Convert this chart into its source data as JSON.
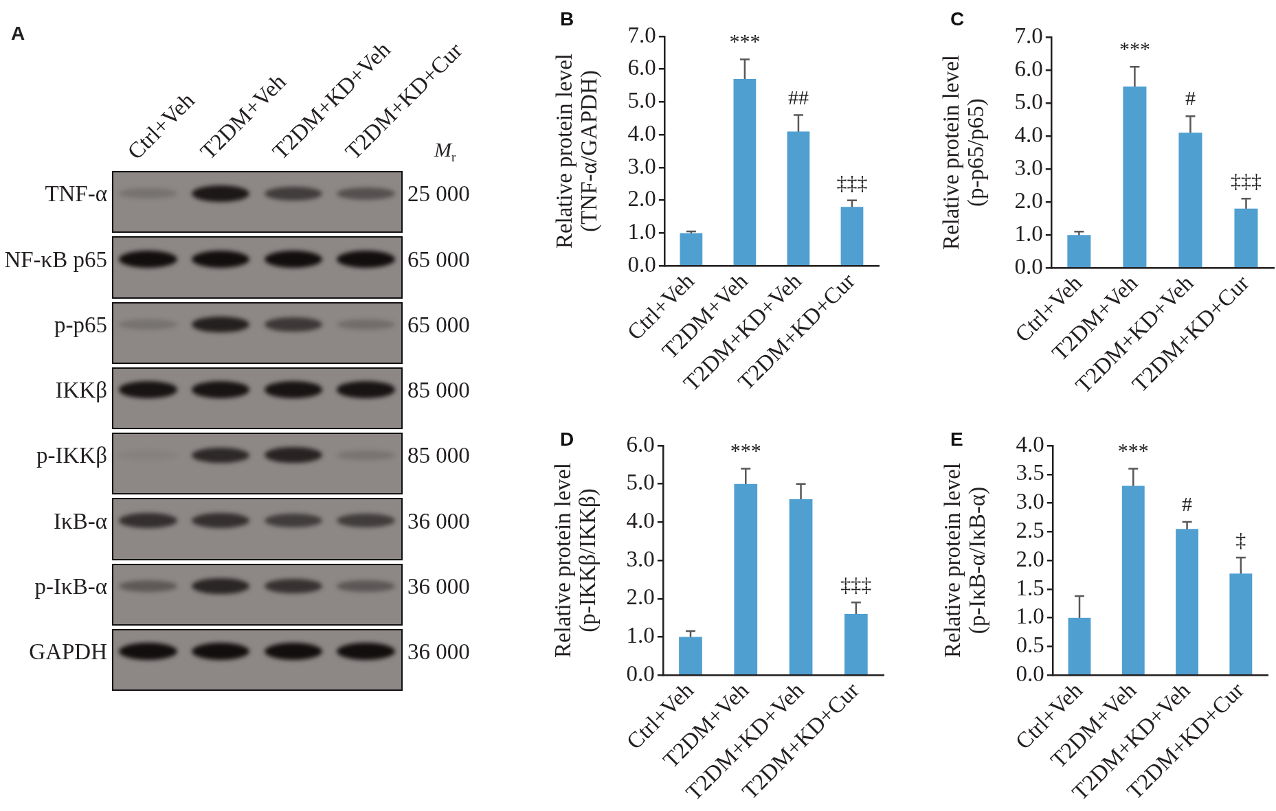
{
  "chart_data": [
    {
      "type": "other",
      "title": "A",
      "categories": [
        "Ctrl+Veh",
        "T2DM+Veh",
        "T2DM+KD+Veh",
        "T2DM+KD+Cur"
      ],
      "y_categories": [
        "TNF-α",
        "NF-κB p65",
        "p-p65",
        "IKKβ",
        "p-IKKβ",
        "IκB-α",
        "p-IκB-α",
        "GAPDH"
      ],
      "y2_categories": [
        "25 000",
        "65 000",
        "65 000",
        "85 000",
        "85 000",
        "36 000",
        "36 000",
        "36 000"
      ],
      "annotations": [
        "M$_{r}$"
      ]
    },
    {
      "type": "bar",
      "title": "B",
      "categories": [
        "Ctrl+Veh",
        "T2DM+Veh",
        "T2DM+KD+Veh",
        "T2DM+KD+Cur"
      ],
      "values": [
        1.0,
        5.7,
        4.1,
        1.8
      ],
      "errors": [
        0.05,
        0.6,
        0.5,
        0.2
      ],
      "color": "#4f9fd1",
      "ylabel": "Relative protein level\n(TNF-α/GAPDH)",
      "ylim": [
        0,
        7
      ],
      "yticks": [
        {
          "value": 0,
          "label": "0.0"
        },
        {
          "value": 1,
          "label": "1.0"
        },
        {
          "value": 2,
          "label": "2.0"
        },
        {
          "value": 3,
          "label": "3.0"
        },
        {
          "value": 4,
          "label": "4.0"
        },
        {
          "value": 5,
          "label": "5.0"
        },
        {
          "value": 6,
          "label": "6.0"
        },
        {
          "value": 7,
          "label": "7.0"
        }
      ],
      "annotations": [
        {
          "text": "***",
          "x": "T2DM+Veh",
          "y": 5.7
        },
        {
          "text": "##",
          "x": "T2DM+KD+Veh",
          "y": 4.1
        },
        {
          "text": "‡‡‡",
          "x": "T2DM+KD+Cur",
          "y": 1.8
        }
      ]
    },
    {
      "type": "bar",
      "title": "C",
      "categories": [
        "Ctrl+Veh",
        "T2DM+Veh",
        "T2DM+KD+Veh",
        "T2DM+KD+Cur"
      ],
      "values": [
        1.0,
        5.5,
        4.1,
        1.8
      ],
      "errors": [
        0.1,
        0.6,
        0.5,
        0.3
      ],
      "color": "#4f9fd1",
      "ylabel": "Relative protein level\n(p-p65/p65)",
      "ylim": [
        0,
        7
      ],
      "yticks": [
        {
          "value": 0,
          "label": "0.0"
        },
        {
          "value": 1,
          "label": "1.0"
        },
        {
          "value": 2,
          "label": "2.0"
        },
        {
          "value": 3,
          "label": "3.0"
        },
        {
          "value": 4,
          "label": "4.0"
        },
        {
          "value": 5,
          "label": "5.0"
        },
        {
          "value": 6,
          "label": "6.0"
        },
        {
          "value": 7,
          "label": "7.0"
        }
      ],
      "annotations": [
        {
          "text": "***",
          "x": "T2DM+Veh",
          "y": 5.5
        },
        {
          "text": "#",
          "x": "T2DM+KD+Veh",
          "y": 4.1
        },
        {
          "text": "‡‡‡",
          "x": "T2DM+KD+Cur",
          "y": 1.8
        }
      ]
    },
    {
      "type": "bar",
      "title": "D",
      "categories": [
        "Ctrl+Veh",
        "T2DM+Veh",
        "T2DM+KD+Veh",
        "T2DM+KD+Cur"
      ],
      "values": [
        1.0,
        5.0,
        4.6,
        1.6
      ],
      "errors": [
        0.15,
        0.4,
        0.4,
        0.3
      ],
      "color": "#4f9fd1",
      "ylabel": "Relative protein level\n(p-IKKβ/IKKβ)",
      "ylim": [
        0,
        6
      ],
      "yticks": [
        {
          "value": 0,
          "label": "0.0"
        },
        {
          "value": 1,
          "label": "1.0"
        },
        {
          "value": 2,
          "label": "2.0"
        },
        {
          "value": 3,
          "label": "3.0"
        },
        {
          "value": 4,
          "label": "4.0"
        },
        {
          "value": 5,
          "label": "5.0"
        },
        {
          "value": 6,
          "label": "6.0"
        }
      ],
      "annotations": [
        {
          "text": "***",
          "x": "T2DM+Veh",
          "y": 5.0
        },
        {
          "text": "‡‡‡",
          "x": "T2DM+KD+Cur",
          "y": 1.6
        }
      ]
    },
    {
      "type": "bar",
      "title": "E",
      "categories": [
        "Ctrl+Veh",
        "T2DM+Veh",
        "T2DM+KD+Veh",
        "T2DM+KD+Cur"
      ],
      "values": [
        1.0,
        3.3,
        2.55,
        1.77
      ],
      "errors": [
        0.38,
        0.3,
        0.12,
        0.28
      ],
      "color": "#4f9fd1",
      "ylabel": "Relative protein level\n(p-IκB-α/IκB-α)",
      "ylim": [
        0,
        4
      ],
      "yticks": [
        {
          "value": 0,
          "label": "0.0"
        },
        {
          "value": 0.5,
          "label": "0.5"
        },
        {
          "value": 1,
          "label": "1.0"
        },
        {
          "value": 1.5,
          "label": "1.5"
        },
        {
          "value": 2,
          "label": "2.0"
        },
        {
          "value": 2.5,
          "label": "2.5"
        },
        {
          "value": 3,
          "label": "3.0"
        },
        {
          "value": 3.5,
          "label": "3.5"
        },
        {
          "value": 4,
          "label": "4.0"
        }
      ],
      "annotations": [
        {
          "text": "***",
          "x": "T2DM+Veh",
          "y": 3.3
        },
        {
          "text": "#",
          "x": "T2DM+KD+Veh",
          "y": 2.55
        },
        {
          "text": "‡",
          "x": "T2DM+KD+Cur",
          "y": 1.77
        }
      ]
    }
  ]
}
